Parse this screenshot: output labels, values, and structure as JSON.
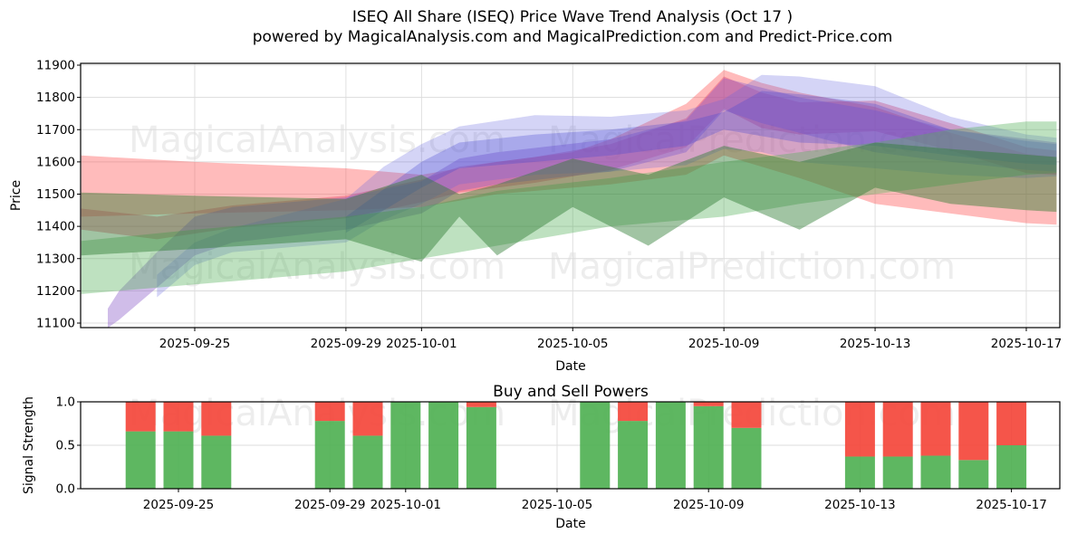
{
  "title": {
    "line1": "ISEQ All Share (ISEQ) Price Wave Trend Analysis (Oct 17 )",
    "line2": "powered by MagicalAnalysis.com and MagicalPrediction.com and Predict-Price.com"
  },
  "watermarks": {
    "analysis": "MagicalAnalysis.com",
    "prediction": "MagicalPrediction.com"
  },
  "chart_data": [
    {
      "type": "area",
      "name": "price_wave_trend",
      "ylabel": "Price",
      "xlabel": "Date",
      "ylim": [
        11100,
        11900
      ],
      "y_ticks": [
        11100,
        11200,
        11300,
        11400,
        11500,
        11600,
        11700,
        11800,
        11900
      ],
      "x_ticks": [
        {
          "d": 3,
          "label": "2025-09-25"
        },
        {
          "d": 7,
          "label": "2025-09-29"
        },
        {
          "d": 9,
          "label": "2025-10-01"
        },
        {
          "d": 13,
          "label": "2025-10-05"
        },
        {
          "d": 17,
          "label": "2025-10-09"
        },
        {
          "d": 21,
          "label": "2025-10-13"
        },
        {
          "d": 25,
          "label": "2025-10-17"
        }
      ],
      "note_x_units": "d = days since 2025-09-22",
      "grid": true,
      "bands": [
        {
          "name": "red-outer-band",
          "color": "#ff5555",
          "opacity": 0.4,
          "top": [
            [
              0,
              11620
            ],
            [
              3,
              11600
            ],
            [
              7,
              11580
            ],
            [
              9,
              11560
            ],
            [
              11,
              11600
            ],
            [
              13,
              11630
            ],
            [
              14,
              11670
            ],
            [
              16,
              11780
            ],
            [
              17,
              11885
            ],
            [
              18,
              11845
            ],
            [
              19,
              11815
            ],
            [
              21,
              11770
            ],
            [
              23,
              11690
            ],
            [
              25,
              11625
            ],
            [
              25.8,
              11615
            ]
          ],
          "bottom": [
            [
              25.8,
              11405
            ],
            [
              25,
              11410
            ],
            [
              23,
              11440
            ],
            [
              21,
              11470
            ],
            [
              19,
              11550
            ],
            [
              17,
              11620
            ],
            [
              16,
              11560
            ],
            [
              14,
              11530
            ],
            [
              11,
              11500
            ],
            [
              9,
              11460
            ],
            [
              7,
              11450
            ],
            [
              3,
              11440
            ],
            [
              0,
              11430
            ]
          ]
        },
        {
          "name": "red-inner-band",
          "color": "#e23b60",
          "opacity": 0.38,
          "top": [
            [
              0,
              11455
            ],
            [
              2,
              11430
            ],
            [
              4,
              11465
            ],
            [
              7,
              11495
            ],
            [
              9,
              11545
            ],
            [
              10,
              11585
            ],
            [
              12,
              11615
            ],
            [
              14,
              11655
            ],
            [
              16,
              11735
            ],
            [
              17,
              11865
            ],
            [
              18,
              11815
            ],
            [
              19,
              11785
            ],
            [
              21,
              11790
            ],
            [
              23,
              11720
            ],
            [
              25,
              11645
            ],
            [
              25.8,
              11635
            ]
          ],
          "bottom": [
            [
              25.8,
              11560
            ],
            [
              25,
              11565
            ],
            [
              23,
              11635
            ],
            [
              21,
              11695
            ],
            [
              19,
              11685
            ],
            [
              18,
              11705
            ],
            [
              17,
              11765
            ],
            [
              16,
              11645
            ],
            [
              14,
              11575
            ],
            [
              12,
              11535
            ],
            [
              10,
              11505
            ],
            [
              9,
              11475
            ],
            [
              7,
              11425
            ],
            [
              4,
              11395
            ],
            [
              2,
              11360
            ],
            [
              0,
              11390
            ]
          ]
        },
        {
          "name": "purple-band",
          "color": "#8a5bc8",
          "opacity": 0.4,
          "top": [
            [
              0.7,
              11145
            ],
            [
              1,
              11200
            ],
            [
              2,
              11320
            ],
            [
              3,
              11430
            ],
            [
              4,
              11460
            ],
            [
              7,
              11490
            ],
            [
              9,
              11540
            ],
            [
              10,
              11610
            ],
            [
              11,
              11630
            ],
            [
              14,
              11670
            ],
            [
              16,
              11730
            ],
            [
              17,
              11860
            ],
            [
              18,
              11830
            ],
            [
              19,
              11800
            ],
            [
              21,
              11760
            ],
            [
              23,
              11700
            ],
            [
              25.8,
              11660
            ]
          ],
          "bottom": [
            [
              25.8,
              11570
            ],
            [
              25,
              11575
            ],
            [
              23,
              11600
            ],
            [
              21,
              11630
            ],
            [
              19,
              11690
            ],
            [
              18,
              11720
            ],
            [
              17,
              11760
            ],
            [
              16,
              11630
            ],
            [
              14,
              11570
            ],
            [
              11,
              11530
            ],
            [
              10,
              11510
            ],
            [
              9,
              11440
            ],
            [
              7,
              11390
            ],
            [
              4,
              11350
            ],
            [
              3,
              11310
            ],
            [
              2,
              11210
            ],
            [
              1,
              11110
            ],
            [
              0.7,
              11085
            ]
          ]
        },
        {
          "name": "blue-outer-band",
          "color": "#6666dd",
          "opacity": 0.28,
          "top": [
            [
              2,
              11250
            ],
            [
              3,
              11350
            ],
            [
              4,
              11395
            ],
            [
              7,
              11485
            ],
            [
              8,
              11585
            ],
            [
              9,
              11655
            ],
            [
              10,
              11710
            ],
            [
              12,
              11745
            ],
            [
              14,
              11740
            ],
            [
              16,
              11760
            ],
            [
              17,
              11795
            ],
            [
              18,
              11870
            ],
            [
              19,
              11865
            ],
            [
              21,
              11835
            ],
            [
              23,
              11740
            ],
            [
              25,
              11685
            ],
            [
              25.8,
              11675
            ]
          ],
          "bottom": [
            [
              25.8,
              11555
            ],
            [
              25,
              11550
            ],
            [
              23,
              11560
            ],
            [
              21,
              11580
            ],
            [
              19,
              11600
            ],
            [
              18,
              11630
            ],
            [
              17,
              11640
            ],
            [
              16,
              11590
            ],
            [
              14,
              11570
            ],
            [
              12,
              11560
            ],
            [
              10,
              11530
            ],
            [
              9,
              11470
            ],
            [
              8,
              11420
            ],
            [
              7,
              11350
            ],
            [
              4,
              11320
            ],
            [
              3,
              11280
            ],
            [
              2,
              11180
            ]
          ]
        },
        {
          "name": "blue-inner-band",
          "color": "#4747d1",
          "opacity": 0.3,
          "top": [
            [
              7,
              11430
            ],
            [
              9,
              11600
            ],
            [
              10,
              11660
            ],
            [
              12,
              11685
            ],
            [
              14,
              11700
            ],
            [
              16,
              11725
            ],
            [
              17,
              11755
            ],
            [
              18,
              11820
            ],
            [
              19,
              11810
            ],
            [
              21,
              11780
            ],
            [
              23,
              11700
            ],
            [
              25,
              11665
            ],
            [
              25.8,
              11655
            ]
          ],
          "bottom": [
            [
              25.8,
              11590
            ],
            [
              25,
              11595
            ],
            [
              23,
              11620
            ],
            [
              21,
              11650
            ],
            [
              19,
              11660
            ],
            [
              18,
              11680
            ],
            [
              17,
              11700
            ],
            [
              16,
              11650
            ],
            [
              14,
              11620
            ],
            [
              12,
              11600
            ],
            [
              10,
              11580
            ],
            [
              9,
              11520
            ],
            [
              7,
              11380
            ]
          ]
        },
        {
          "name": "green-light-band",
          "color": "#55b05a",
          "opacity": 0.38,
          "top": [
            [
              0,
              11355
            ],
            [
              3,
              11390
            ],
            [
              7,
              11430
            ],
            [
              9,
              11460
            ],
            [
              11,
              11510
            ],
            [
              14,
              11550
            ],
            [
              17,
              11600
            ],
            [
              19,
              11630
            ],
            [
              21,
              11660
            ],
            [
              23,
              11700
            ],
            [
              25,
              11725
            ],
            [
              25.8,
              11725
            ]
          ],
          "bottom": [
            [
              25.8,
              11565
            ],
            [
              25,
              11560
            ],
            [
              23,
              11530
            ],
            [
              21,
              11500
            ],
            [
              19,
              11470
            ],
            [
              17,
              11430
            ],
            [
              14,
              11400
            ],
            [
              11,
              11340
            ],
            [
              9,
              11300
            ],
            [
              7,
              11260
            ],
            [
              3,
              11220
            ],
            [
              0,
              11190
            ]
          ]
        },
        {
          "name": "green-dark-band",
          "color": "#2f7d33",
          "opacity": 0.45,
          "top": [
            [
              0,
              11505
            ],
            [
              3,
              11495
            ],
            [
              7,
              11485
            ],
            [
              9,
              11560
            ],
            [
              10,
              11500
            ],
            [
              11,
              11530
            ],
            [
              13,
              11610
            ],
            [
              15,
              11560
            ],
            [
              17,
              11650
            ],
            [
              19,
              11600
            ],
            [
              21,
              11660
            ],
            [
              23,
              11640
            ],
            [
              25.8,
              11615
            ]
          ],
          "bottom": [
            [
              25.8,
              11445
            ],
            [
              25,
              11450
            ],
            [
              23,
              11470
            ],
            [
              21,
              11520
            ],
            [
              19,
              11390
            ],
            [
              17,
              11490
            ],
            [
              15,
              11340
            ],
            [
              13,
              11460
            ],
            [
              11,
              11310
            ],
            [
              10,
              11430
            ],
            [
              9,
              11290
            ],
            [
              7,
              11360
            ],
            [
              3,
              11330
            ],
            [
              0,
              11310
            ]
          ]
        }
      ]
    },
    {
      "type": "bar",
      "name": "buy_sell_powers",
      "title": "Buy and Sell Powers",
      "ylabel": "Signal Strength",
      "xlabel": "Date",
      "ylim": [
        0.0,
        1.0
      ],
      "y_ticks": [
        0.0,
        0.5,
        1.0
      ],
      "x_ticks": [
        {
          "d": 3,
          "label": "2025-09-25"
        },
        {
          "d": 7,
          "label": "2025-09-29"
        },
        {
          "d": 9,
          "label": "2025-10-01"
        },
        {
          "d": 13,
          "label": "2025-10-05"
        },
        {
          "d": 17,
          "label": "2025-10-09"
        },
        {
          "d": 21,
          "label": "2025-10-13"
        },
        {
          "d": 25,
          "label": "2025-10-17"
        }
      ],
      "buy_color": "#4caf50",
      "sell_color": "#f44336",
      "bars": [
        {
          "d": 2,
          "date": "2025-09-24",
          "buy": 0.66,
          "sell": 0.34
        },
        {
          "d": 3,
          "date": "2025-09-25",
          "buy": 0.66,
          "sell": 0.34
        },
        {
          "d": 4,
          "date": "2025-09-26",
          "buy": 0.61,
          "sell": 0.39
        },
        {
          "d": 7,
          "date": "2025-09-29",
          "buy": 0.78,
          "sell": 0.22
        },
        {
          "d": 8,
          "date": "2025-09-30",
          "buy": 0.61,
          "sell": 0.39
        },
        {
          "d": 9,
          "date": "2025-10-01",
          "buy": 1.0,
          "sell": 0.0
        },
        {
          "d": 10,
          "date": "2025-10-02",
          "buy": 1.0,
          "sell": 0.0
        },
        {
          "d": 11,
          "date": "2025-10-03",
          "buy": 0.94,
          "sell": 0.06
        },
        {
          "d": 14,
          "date": "2025-10-06",
          "buy": 1.0,
          "sell": 0.0
        },
        {
          "d": 15,
          "date": "2025-10-07",
          "buy": 0.78,
          "sell": 0.22
        },
        {
          "d": 16,
          "date": "2025-10-08",
          "buy": 1.0,
          "sell": 0.0
        },
        {
          "d": 17,
          "date": "2025-10-09",
          "buy": 0.95,
          "sell": 0.05
        },
        {
          "d": 18,
          "date": "2025-10-10",
          "buy": 0.7,
          "sell": 0.3
        },
        {
          "d": 21,
          "date": "2025-10-13",
          "buy": 0.37,
          "sell": 0.63
        },
        {
          "d": 22,
          "date": "2025-10-14",
          "buy": 0.37,
          "sell": 0.63
        },
        {
          "d": 23,
          "date": "2025-10-15",
          "buy": 0.38,
          "sell": 0.62
        },
        {
          "d": 24,
          "date": "2025-10-16",
          "buy": 0.33,
          "sell": 0.67
        },
        {
          "d": 25,
          "date": "2025-10-17",
          "buy": 0.5,
          "sell": 0.5
        }
      ]
    }
  ]
}
